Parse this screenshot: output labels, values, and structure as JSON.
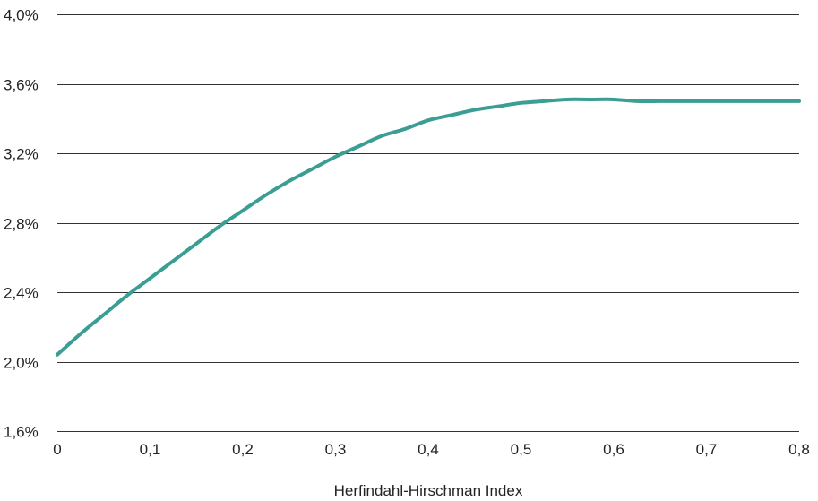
{
  "chart_data": {
    "type": "line",
    "title": "",
    "xlabel": "Herfindahl-Hirschman Index",
    "ylabel": "",
    "xlim": [
      0,
      0.8
    ],
    "ylim": [
      1.6,
      4.0
    ],
    "x_ticks": [
      "0",
      "0,1",
      "0,2",
      "0,3",
      "0,4",
      "0,5",
      "0,6",
      "0,7",
      "0,8"
    ],
    "y_ticks": [
      "1,6%",
      "2,0%",
      "2,4%",
      "2,8%",
      "3,2%",
      "3,6%",
      "4,0%"
    ],
    "grid": "horizontal",
    "series": [
      {
        "color": "#3a9e94",
        "x": [
          0,
          0.025,
          0.05,
          0.075,
          0.1,
          0.125,
          0.15,
          0.175,
          0.2,
          0.225,
          0.25,
          0.275,
          0.3,
          0.325,
          0.35,
          0.375,
          0.4,
          0.425,
          0.45,
          0.475,
          0.5,
          0.525,
          0.55,
          0.575,
          0.6,
          0.625,
          0.65,
          0.675,
          0.7,
          0.725,
          0.75,
          0.775,
          0.8
        ],
        "y": [
          2.04,
          2.16,
          2.27,
          2.38,
          2.48,
          2.58,
          2.68,
          2.78,
          2.87,
          2.96,
          3.04,
          3.11,
          3.18,
          3.24,
          3.3,
          3.34,
          3.39,
          3.42,
          3.45,
          3.47,
          3.49,
          3.5,
          3.51,
          3.51,
          3.51,
          3.5,
          3.5,
          3.5,
          3.5,
          3.5,
          3.5,
          3.5,
          3.5
        ]
      }
    ]
  }
}
